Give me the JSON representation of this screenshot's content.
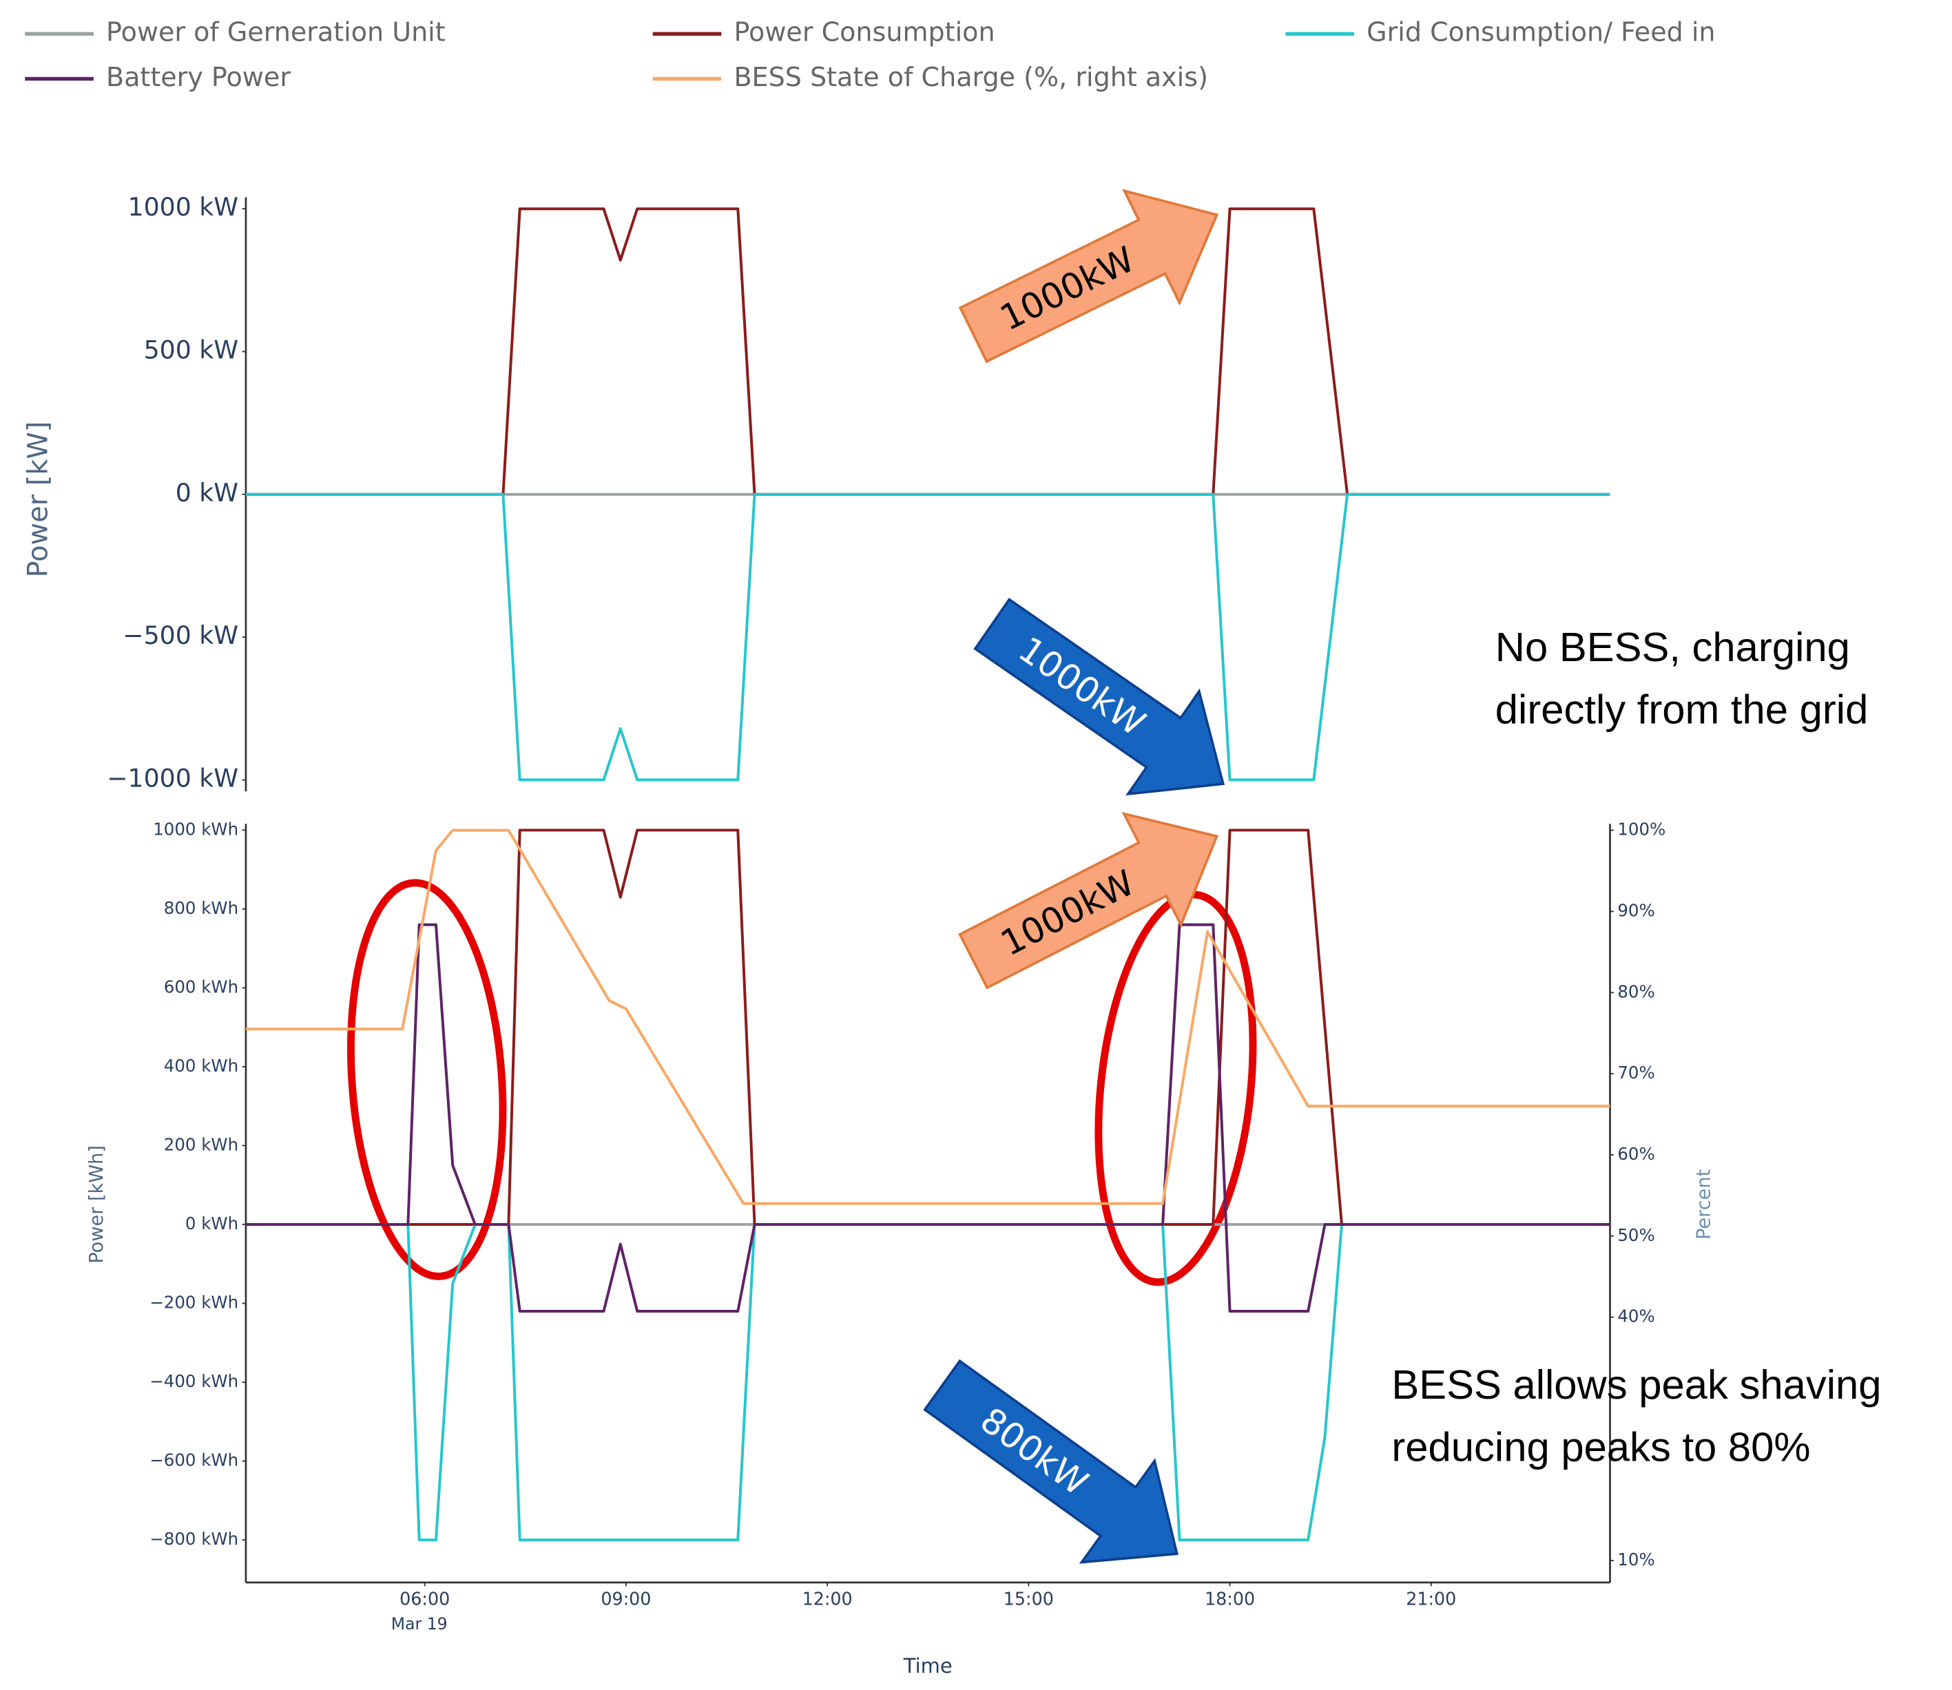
{
  "chart_data": [
    {
      "type": "line",
      "y_label": "Power [kW]",
      "xlim": [
        "03:20",
        "23:40"
      ],
      "ylim": [
        -1040,
        1040
      ],
      "yticks": [
        {
          "value": 1000,
          "label": "1000 kW"
        },
        {
          "value": 500,
          "label": "500 kW"
        },
        {
          "value": 0,
          "label": "0 kW"
        },
        {
          "value": -500,
          "label": "−500 kW"
        },
        {
          "value": -1000,
          "label": "−1000 kW"
        }
      ],
      "x": [
        "03:20",
        "07:10",
        "07:25",
        "08:40",
        "08:55",
        "09:10",
        "10:40",
        "10:55",
        "17:45",
        "18:00",
        "19:15",
        "19:45",
        "23:40"
      ],
      "series": [
        {
          "name": "Power of Gerneration Unit",
          "color": "#9aa3a6",
          "values": [
            0,
            0,
            0,
            0,
            0,
            0,
            0,
            0,
            0,
            0,
            0,
            0,
            0
          ]
        },
        {
          "name": "Power Consumption",
          "color": "#8b1c1c",
          "values": [
            0,
            0,
            1000,
            1000,
            820,
            1000,
            1000,
            0,
            0,
            1000,
            1000,
            0,
            0
          ]
        },
        {
          "name": "Grid Consumption/ Feed in",
          "color": "#27c6cc",
          "values": [
            0,
            0,
            -1000,
            -1000,
            -820,
            -1000,
            -1000,
            0,
            0,
            -1000,
            -1000,
            0,
            0
          ]
        }
      ]
    },
    {
      "type": "line",
      "x_label": "Time",
      "y_label": "Power [kWh]",
      "y2_label": "Percent",
      "xlim": [
        "03:20",
        "23:40"
      ],
      "xticks": [
        "06:00",
        "09:00",
        "12:00",
        "15:00",
        "18:00",
        "21:00"
      ],
      "x_date_label": "Mar 19",
      "ylim": [
        -908,
        1016
      ],
      "yticks": [
        {
          "value": 1000,
          "label": "1000 kWh"
        },
        {
          "value": 800,
          "label": "800 kWh"
        },
        {
          "value": 600,
          "label": "600 kWh"
        },
        {
          "value": 400,
          "label": "400 kWh"
        },
        {
          "value": 200,
          "label": "200 kWh"
        },
        {
          "value": 0,
          "label": "0 kWh"
        },
        {
          "value": -200,
          "label": "−200 kWh"
        },
        {
          "value": -400,
          "label": "−400 kWh"
        },
        {
          "value": -600,
          "label": "−600 kWh"
        },
        {
          "value": -800,
          "label": "−800 kWh"
        }
      ],
      "y2lim": [
        7.3,
        100.8
      ],
      "y2ticks": [
        {
          "value": 100,
          "label": "100%"
        },
        {
          "value": 90,
          "label": "90%"
        },
        {
          "value": 80,
          "label": "80%"
        },
        {
          "value": 70,
          "label": "70%"
        },
        {
          "value": 60,
          "label": "60%"
        },
        {
          "value": 50,
          "label": "50%"
        },
        {
          "value": 40,
          "label": "40%"
        },
        {
          "value": 10,
          "label": "10%"
        }
      ],
      "series": [
        {
          "name": "Power of Gerneration Unit",
          "color": "#9aa3a6",
          "x": [
            "03:20",
            "23:40"
          ],
          "values": [
            0,
            0
          ]
        },
        {
          "name": "Power Consumption",
          "color": "#8b1c1c",
          "x": [
            "03:20",
            "07:15",
            "07:25",
            "08:40",
            "08:55",
            "09:10",
            "10:40",
            "10:55",
            "17:45",
            "18:00",
            "19:10",
            "19:40",
            "23:40"
          ],
          "values": [
            0,
            0,
            1000,
            1000,
            830,
            1000,
            1000,
            0,
            0,
            1000,
            1000,
            0,
            0
          ]
        },
        {
          "name": "Grid Consumption/ Feed in",
          "color": "#27c6cc",
          "x": [
            "03:20",
            "05:45",
            "05:55",
            "06:10",
            "06:25",
            "06:45",
            "07:15",
            "07:25",
            "10:40",
            "10:55",
            "17:00",
            "17:15",
            "19:10",
            "19:25",
            "19:40",
            "23:40"
          ],
          "values": [
            0,
            0,
            -800,
            -800,
            -150,
            0,
            0,
            -800,
            -800,
            0,
            0,
            -800,
            -800,
            -540,
            0,
            0
          ]
        },
        {
          "name": "Battery Power",
          "color": "#5e2366",
          "x": [
            "03:20",
            "05:45",
            "05:55",
            "06:10",
            "06:25",
            "06:45",
            "07:15",
            "07:25",
            "08:40",
            "08:55",
            "09:10",
            "10:40",
            "10:55",
            "17:00",
            "17:15",
            "17:45",
            "18:00",
            "19:10",
            "19:25",
            "23:40"
          ],
          "values": [
            0,
            0,
            760,
            760,
            150,
            0,
            0,
            -220,
            -220,
            -50,
            -220,
            -220,
            0,
            0,
            760,
            760,
            -220,
            -220,
            0,
            0
          ]
        },
        {
          "name": "BESS State of Charge (%, right axis)",
          "color": "#f9a866",
          "axis": "y2",
          "x": [
            "03:20",
            "05:40",
            "06:10",
            "06:25",
            "07:15",
            "08:45",
            "09:00",
            "10:45",
            "17:00",
            "17:40",
            "19:10",
            "23:40"
          ],
          "values": [
            75.5,
            75.5,
            97.5,
            100,
            100,
            79,
            78,
            54,
            54,
            87.5,
            66,
            66
          ]
        }
      ]
    }
  ],
  "arrow_labels": [
    "1000kW",
    "1000kW",
    "1000kW",
    "800kW"
  ],
  "notes": [
    [
      "No BESS, charging",
      "directly from the grid"
    ],
    [
      "BESS allows peak shaving",
      "reducing peaks to 80%"
    ]
  ]
}
